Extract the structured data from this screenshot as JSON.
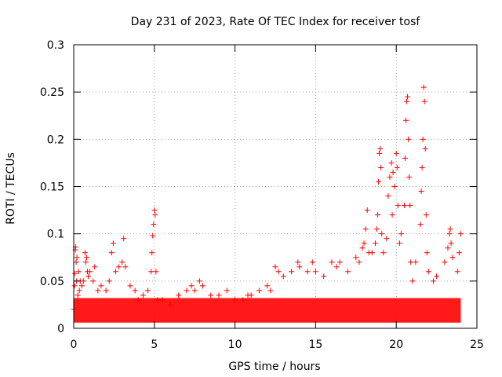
{
  "chart_data": {
    "type": "scatter",
    "title": "Day 231 of 2023, Rate Of TEC Index for receiver tosf",
    "xlabel": "GPS time / hours",
    "ylabel": "ROTI / TECUs",
    "xlim": [
      0,
      25
    ],
    "ylim": [
      0,
      0.3
    ],
    "xticks": [
      0,
      5,
      10,
      15,
      20,
      25
    ],
    "yticks": [
      0,
      0.05,
      0.1,
      0.15,
      0.2,
      0.25,
      0.3
    ],
    "xtick_labels": [
      "0",
      "5",
      "10",
      "15",
      "20",
      "25"
    ],
    "ytick_labels": [
      "0",
      "0.05",
      "0.1",
      "0.15",
      "0.2",
      "0.25",
      "0.3"
    ],
    "grid": true,
    "marker": "+",
    "color": "#ff0000",
    "series": [
      {
        "name": "ROTI",
        "points": [
          [
            0.0,
            0.02
          ],
          [
            0.05,
            0.045
          ],
          [
            0.08,
            0.058
          ],
          [
            0.1,
            0.083
          ],
          [
            0.12,
            0.086
          ],
          [
            0.15,
            0.07
          ],
          [
            0.18,
            0.05
          ],
          [
            0.2,
            0.075
          ],
          [
            0.25,
            0.035
          ],
          [
            0.3,
            0.06
          ],
          [
            0.35,
            0.04
          ],
          [
            0.4,
            0.05
          ],
          [
            0.5,
            0.045
          ],
          [
            0.6,
            0.05
          ],
          [
            0.7,
            0.08
          ],
          [
            0.75,
            0.07
          ],
          [
            0.8,
            0.075
          ],
          [
            0.85,
            0.06
          ],
          [
            0.9,
            0.055
          ],
          [
            1.0,
            0.06
          ],
          [
            1.2,
            0.05
          ],
          [
            1.3,
            0.065
          ],
          [
            1.5,
            0.04
          ],
          [
            1.7,
            0.045
          ],
          [
            2.0,
            0.04
          ],
          [
            2.2,
            0.05
          ],
          [
            2.35,
            0.08
          ],
          [
            2.45,
            0.09
          ],
          [
            2.6,
            0.06
          ],
          [
            2.8,
            0.065
          ],
          [
            3.0,
            0.07
          ],
          [
            3.1,
            0.095
          ],
          [
            3.2,
            0.065
          ],
          [
            3.5,
            0.045
          ],
          [
            3.8,
            0.04
          ],
          [
            4.0,
            0.03
          ],
          [
            4.3,
            0.035
          ],
          [
            4.6,
            0.04
          ],
          [
            4.8,
            0.06
          ],
          [
            4.85,
            0.08
          ],
          [
            4.9,
            0.098
          ],
          [
            4.95,
            0.11
          ],
          [
            5.0,
            0.125
          ],
          [
            5.05,
            0.12
          ],
          [
            5.1,
            0.06
          ],
          [
            5.2,
            0.03
          ],
          [
            5.5,
            0.03
          ],
          [
            6.0,
            0.025
          ],
          [
            6.5,
            0.035
          ],
          [
            7.0,
            0.04
          ],
          [
            7.3,
            0.045
          ],
          [
            7.5,
            0.04
          ],
          [
            7.8,
            0.05
          ],
          [
            8.0,
            0.045
          ],
          [
            8.5,
            0.035
          ],
          [
            9.0,
            0.035
          ],
          [
            9.5,
            0.04
          ],
          [
            10.0,
            0.03
          ],
          [
            10.5,
            0.03
          ],
          [
            10.8,
            0.035
          ],
          [
            11.0,
            0.035
          ],
          [
            11.5,
            0.04
          ],
          [
            12.0,
            0.045
          ],
          [
            12.2,
            0.04
          ],
          [
            12.5,
            0.065
          ],
          [
            12.7,
            0.06
          ],
          [
            13.0,
            0.055
          ],
          [
            13.5,
            0.06
          ],
          [
            13.9,
            0.07
          ],
          [
            14.0,
            0.065
          ],
          [
            14.5,
            0.06
          ],
          [
            14.8,
            0.07
          ],
          [
            15.0,
            0.06
          ],
          [
            15.5,
            0.055
          ],
          [
            16.0,
            0.07
          ],
          [
            16.3,
            0.065
          ],
          [
            16.5,
            0.07
          ],
          [
            17.0,
            0.06
          ],
          [
            17.5,
            0.075
          ],
          [
            17.7,
            0.07
          ],
          [
            17.9,
            0.085
          ],
          [
            18.0,
            0.09
          ],
          [
            18.1,
            0.105
          ],
          [
            18.2,
            0.125
          ],
          [
            18.3,
            0.08
          ],
          [
            18.5,
            0.08
          ],
          [
            18.7,
            0.09
          ],
          [
            18.8,
            0.105
          ],
          [
            18.85,
            0.12
          ],
          [
            18.9,
            0.155
          ],
          [
            18.95,
            0.185
          ],
          [
            19.0,
            0.19
          ],
          [
            19.05,
            0.17
          ],
          [
            19.1,
            0.1
          ],
          [
            19.2,
            0.08
          ],
          [
            19.4,
            0.095
          ],
          [
            19.5,
            0.14
          ],
          [
            19.6,
            0.16
          ],
          [
            19.7,
            0.175
          ],
          [
            19.75,
            0.12
          ],
          [
            19.8,
            0.165
          ],
          [
            19.9,
            0.15
          ],
          [
            20.0,
            0.185
          ],
          [
            20.05,
            0.17
          ],
          [
            20.1,
            0.13
          ],
          [
            20.2,
            0.09
          ],
          [
            20.3,
            0.1
          ],
          [
            20.5,
            0.13
          ],
          [
            20.55,
            0.18
          ],
          [
            20.6,
            0.22
          ],
          [
            20.65,
            0.24
          ],
          [
            20.7,
            0.245
          ],
          [
            20.75,
            0.2
          ],
          [
            20.8,
            0.16
          ],
          [
            20.85,
            0.13
          ],
          [
            20.9,
            0.07
          ],
          [
            21.0,
            0.05
          ],
          [
            21.2,
            0.07
          ],
          [
            21.5,
            0.11
          ],
          [
            21.55,
            0.145
          ],
          [
            21.6,
            0.17
          ],
          [
            21.65,
            0.2
          ],
          [
            21.7,
            0.255
          ],
          [
            21.75,
            0.24
          ],
          [
            21.8,
            0.19
          ],
          [
            21.85,
            0.12
          ],
          [
            21.9,
            0.08
          ],
          [
            22.0,
            0.06
          ],
          [
            22.3,
            0.05
          ],
          [
            22.5,
            0.055
          ],
          [
            23.0,
            0.07
          ],
          [
            23.2,
            0.085
          ],
          [
            23.3,
            0.1
          ],
          [
            23.35,
            0.105
          ],
          [
            23.4,
            0.09
          ],
          [
            23.5,
            0.075
          ],
          [
            23.8,
            0.06
          ],
          [
            23.9,
            0.08
          ],
          [
            24.0,
            0.1
          ]
        ]
      }
    ]
  }
}
